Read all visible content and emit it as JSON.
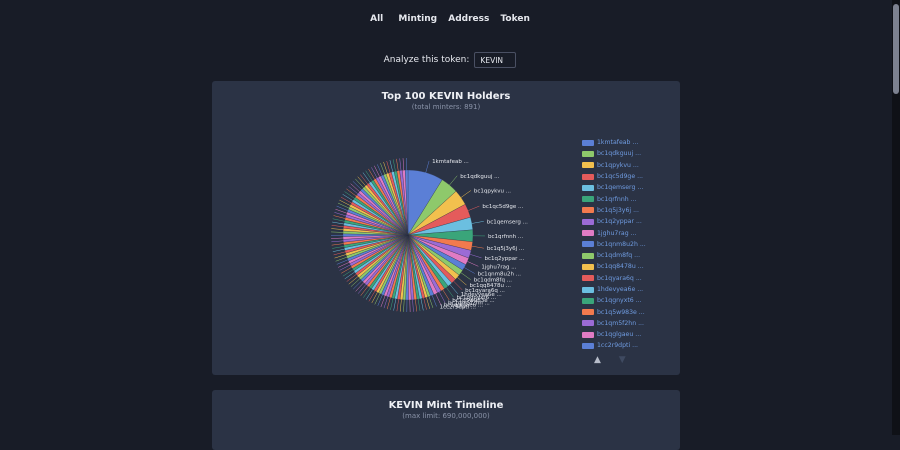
{
  "nav": {
    "all": "All",
    "minting": "Minting",
    "address": "Address",
    "token": "Token"
  },
  "analyze": {
    "label": "Analyze this token:",
    "value": "KEVIN"
  },
  "holders": {
    "title": "Top 100 KEVIN Holders",
    "subtitle": "(total minters: 891)",
    "pager": {
      "up": "▲",
      "down": "▼"
    }
  },
  "timeline": {
    "title": "KEVIN Mint Timeline",
    "subtitle": "(max limit: 690,000,000)"
  },
  "colors": [
    "#5b7fd6",
    "#8ec96b",
    "#f2c04e",
    "#e45b5b",
    "#6bbfe0",
    "#3aa57a",
    "#f27a4e",
    "#9b6bd6",
    "#e07bc4"
  ],
  "chart_data": {
    "type": "pie",
    "title": "Top 100 KEVIN Holders",
    "subtitle": "(total minters: 891)",
    "slices": [
      {
        "label": "1kmtafeab ...",
        "value": 9
      },
      {
        "label": "bc1qdkguuj ...",
        "value": 4.5
      },
      {
        "label": "bc1qpykvu ...",
        "value": 4
      },
      {
        "label": "bc1qc5d9ge ...",
        "value": 3.5
      },
      {
        "label": "bc1qemserg ...",
        "value": 3.2
      },
      {
        "label": "bc1qrfnnh ...",
        "value": 3
      },
      {
        "label": "bc1q5j3y6j ...",
        "value": 2.2
      },
      {
        "label": "bc1q2yppar ...",
        "value": 2
      },
      {
        "label": "1jghu7rag ...",
        "value": 1.8
      },
      {
        "label": "bc1qnm8u2h ...",
        "value": 1.6
      },
      {
        "label": "bc1qdm8fq ...",
        "value": 1.5
      },
      {
        "label": "bc1qq8478u ...",
        "value": 1.4
      },
      {
        "label": "bc1qyara6q ...",
        "value": 1.3
      },
      {
        "label": "1hdevyea6e ...",
        "value": 1.2
      },
      {
        "label": "bc1qgnyxt6 ...",
        "value": 1.1
      },
      {
        "label": "bc1q5w983e ...",
        "value": 1.05
      },
      {
        "label": "bc1qm5f2hn ...",
        "value": 1
      },
      {
        "label": "bc1qglgaeu ...",
        "value": 1
      },
      {
        "label": "1cc2r9dpti ...",
        "value": 0.95
      }
    ],
    "other_slices": 81,
    "other_slice_value": 0.7,
    "legend_position": "right"
  }
}
